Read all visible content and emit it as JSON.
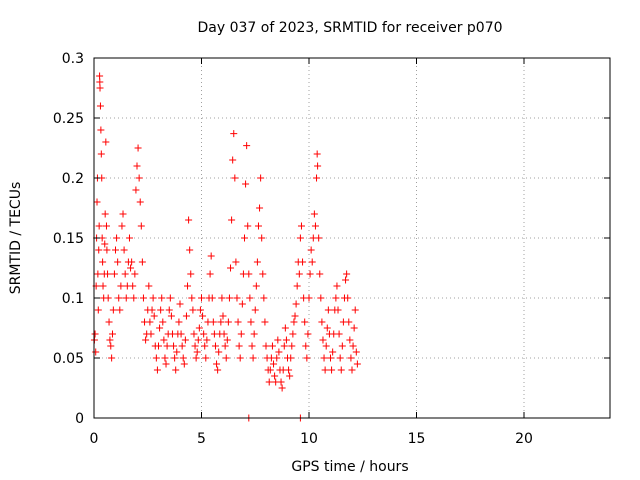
{
  "chart_data": {
    "type": "scatter",
    "title": "Day 037 of 2023, SRMTID for receiver p070",
    "xlabel": "GPS time / hours",
    "ylabel": "SRMTID / TECUs",
    "xlim": [
      0,
      24
    ],
    "ylim": [
      0,
      0.3
    ],
    "grid": true,
    "marker": "+",
    "colors": {
      "series": "#ff0000",
      "grid": "#a0a0a0",
      "axis": "#000000"
    },
    "x_ticks": [
      {
        "value": 0,
        "label": "0"
      },
      {
        "value": 5,
        "label": "5"
      },
      {
        "value": 10,
        "label": "10"
      },
      {
        "value": 15,
        "label": "15"
      },
      {
        "value": 20,
        "label": "20"
      }
    ],
    "y_ticks": [
      {
        "value": 0,
        "label": "0"
      },
      {
        "value": 0.05,
        "label": "0.05"
      },
      {
        "value": 0.1,
        "label": "0.1"
      },
      {
        "value": 0.15,
        "label": "0.15"
      },
      {
        "value": 0.2,
        "label": "0.2"
      },
      {
        "value": 0.25,
        "label": "0.25"
      },
      {
        "value": 0.3,
        "label": "0.3"
      }
    ],
    "series": [
      {
        "name": "p070",
        "points": [
          [
            0.02,
            0.065
          ],
          [
            0.05,
            0.07
          ],
          [
            0.08,
            0.055
          ],
          [
            0.1,
            0.11
          ],
          [
            0.12,
            0.15
          ],
          [
            0.14,
            0.18
          ],
          [
            0.16,
            0.2
          ],
          [
            0.18,
            0.12
          ],
          [
            0.2,
            0.09
          ],
          [
            0.22,
            0.14
          ],
          [
            0.24,
            0.16
          ],
          [
            0.26,
            0.285
          ],
          [
            0.27,
            0.28
          ],
          [
            0.28,
            0.275
          ],
          [
            0.3,
            0.26
          ],
          [
            0.32,
            0.24
          ],
          [
            0.34,
            0.22
          ],
          [
            0.36,
            0.2
          ],
          [
            0.38,
            0.15
          ],
          [
            0.4,
            0.13
          ],
          [
            0.42,
            0.11
          ],
          [
            0.45,
            0.1
          ],
          [
            0.48,
            0.12
          ],
          [
            0.5,
            0.145
          ],
          [
            0.52,
            0.17
          ],
          [
            0.55,
            0.23
          ],
          [
            0.58,
            0.16
          ],
          [
            0.6,
            0.14
          ],
          [
            0.63,
            0.12
          ],
          [
            0.66,
            0.1
          ],
          [
            0.7,
            0.08
          ],
          [
            0.74,
            0.065
          ],
          [
            0.78,
            0.06
          ],
          [
            0.82,
            0.05
          ],
          [
            0.86,
            0.07
          ],
          [
            0.9,
            0.09
          ],
          [
            0.95,
            0.12
          ],
          [
            1.0,
            0.14
          ],
          [
            1.05,
            0.15
          ],
          [
            1.1,
            0.13
          ],
          [
            1.15,
            0.1
          ],
          [
            1.2,
            0.09
          ],
          [
            1.25,
            0.11
          ],
          [
            1.3,
            0.16
          ],
          [
            1.35,
            0.17
          ],
          [
            1.4,
            0.14
          ],
          [
            1.45,
            0.12
          ],
          [
            1.5,
            0.1
          ],
          [
            1.55,
            0.11
          ],
          [
            1.6,
            0.13
          ],
          [
            1.65,
            0.15
          ],
          [
            1.7,
            0.125
          ],
          [
            1.75,
            0.13
          ],
          [
            1.8,
            0.11
          ],
          [
            1.85,
            0.1
          ],
          [
            1.9,
            0.12
          ],
          [
            1.95,
            0.19
          ],
          [
            2.0,
            0.21
          ],
          [
            2.05,
            0.225
          ],
          [
            2.1,
            0.2
          ],
          [
            2.15,
            0.18
          ],
          [
            2.2,
            0.16
          ],
          [
            2.25,
            0.13
          ],
          [
            2.3,
            0.1
          ],
          [
            2.35,
            0.08
          ],
          [
            2.4,
            0.065
          ],
          [
            2.45,
            0.07
          ],
          [
            2.5,
            0.09
          ],
          [
            2.55,
            0.11
          ],
          [
            2.6,
            0.08
          ],
          [
            2.65,
            0.07
          ],
          [
            2.7,
            0.09
          ],
          [
            2.75,
            0.1
          ],
          [
            2.8,
            0.085
          ],
          [
            2.85,
            0.06
          ],
          [
            2.9,
            0.05
          ],
          [
            2.95,
            0.04
          ],
          [
            3.0,
            0.06
          ],
          [
            3.05,
            0.075
          ],
          [
            3.1,
            0.09
          ],
          [
            3.15,
            0.1
          ],
          [
            3.2,
            0.08
          ],
          [
            3.25,
            0.065
          ],
          [
            3.3,
            0.05
          ],
          [
            3.35,
            0.045
          ],
          [
            3.4,
            0.06
          ],
          [
            3.45,
            0.07
          ],
          [
            3.5,
            0.09
          ],
          [
            3.55,
            0.1
          ],
          [
            3.6,
            0.085
          ],
          [
            3.65,
            0.07
          ],
          [
            3.7,
            0.06
          ],
          [
            3.75,
            0.05
          ],
          [
            3.8,
            0.04
          ],
          [
            3.85,
            0.055
          ],
          [
            3.9,
            0.07
          ],
          [
            3.95,
            0.08
          ],
          [
            4.0,
            0.095
          ],
          [
            4.05,
            0.07
          ],
          [
            4.1,
            0.06
          ],
          [
            4.15,
            0.05
          ],
          [
            4.2,
            0.045
          ],
          [
            4.25,
            0.065
          ],
          [
            4.3,
            0.085
          ],
          [
            4.35,
            0.11
          ],
          [
            4.4,
            0.165
          ],
          [
            4.45,
            0.14
          ],
          [
            4.5,
            0.12
          ],
          [
            4.55,
            0.1
          ],
          [
            4.6,
            0.09
          ],
          [
            4.65,
            0.07
          ],
          [
            4.7,
            0.06
          ],
          [
            4.75,
            0.05
          ],
          [
            4.8,
            0.055
          ],
          [
            4.85,
            0.065
          ],
          [
            4.9,
            0.075
          ],
          [
            4.95,
            0.09
          ],
          [
            5.0,
            0.1
          ],
          [
            5.05,
            0.085
          ],
          [
            5.1,
            0.07
          ],
          [
            5.15,
            0.06
          ],
          [
            5.2,
            0.05
          ],
          [
            5.25,
            0.065
          ],
          [
            5.3,
            0.08
          ],
          [
            5.35,
            0.1
          ],
          [
            5.4,
            0.12
          ],
          [
            5.45,
            0.135
          ],
          [
            5.5,
            0.1
          ],
          [
            5.55,
            0.08
          ],
          [
            5.6,
            0.07
          ],
          [
            5.65,
            0.06
          ],
          [
            5.7,
            0.045
          ],
          [
            5.75,
            0.04
          ],
          [
            5.8,
            0.055
          ],
          [
            5.85,
            0.07
          ],
          [
            5.9,
            0.08
          ],
          [
            5.95,
            0.1
          ],
          [
            6.0,
            0.085
          ],
          [
            6.05,
            0.07
          ],
          [
            6.1,
            0.06
          ],
          [
            6.15,
            0.05
          ],
          [
            6.2,
            0.065
          ],
          [
            6.25,
            0.08
          ],
          [
            6.3,
            0.1
          ],
          [
            6.35,
            0.125
          ],
          [
            6.4,
            0.165
          ],
          [
            6.45,
            0.215
          ],
          [
            6.5,
            0.237
          ],
          [
            6.55,
            0.2
          ],
          [
            6.6,
            0.13
          ],
          [
            6.65,
            0.1
          ],
          [
            6.7,
            0.08
          ],
          [
            6.75,
            0.06
          ],
          [
            6.8,
            0.05
          ],
          [
            6.85,
            0.07
          ],
          [
            6.9,
            0.095
          ],
          [
            6.95,
            0.12
          ],
          [
            7.0,
            0.15
          ],
          [
            7.05,
            0.195
          ],
          [
            7.1,
            0.227
          ],
          [
            7.15,
            0.16
          ],
          [
            7.2,
            0.12
          ],
          [
            7.25,
            0.1
          ],
          [
            7.3,
            0.08
          ],
          [
            7.35,
            0.06
          ],
          [
            7.4,
            0.05
          ],
          [
            7.45,
            0.07
          ],
          [
            7.5,
            0.09
          ],
          [
            7.55,
            0.11
          ],
          [
            7.6,
            0.13
          ],
          [
            7.65,
            0.16
          ],
          [
            7.7,
            0.175
          ],
          [
            7.75,
            0.2
          ],
          [
            7.8,
            0.15
          ],
          [
            7.85,
            0.12
          ],
          [
            7.9,
            0.1
          ],
          [
            7.95,
            0.08
          ],
          [
            8.0,
            0.06
          ],
          [
            8.05,
            0.05
          ],
          [
            8.1,
            0.04
          ],
          [
            8.15,
            0.03
          ],
          [
            8.2,
            0.04
          ],
          [
            8.25,
            0.05
          ],
          [
            8.3,
            0.06
          ],
          [
            8.35,
            0.045
          ],
          [
            8.4,
            0.035
          ],
          [
            8.45,
            0.03
          ],
          [
            8.5,
            0.05
          ],
          [
            8.55,
            0.065
          ],
          [
            8.6,
            0.055
          ],
          [
            8.65,
            0.04
          ],
          [
            8.7,
            0.03
          ],
          [
            8.75,
            0.025
          ],
          [
            8.8,
            0.04
          ],
          [
            8.85,
            0.06
          ],
          [
            8.9,
            0.075
          ],
          [
            8.95,
            0.065
          ],
          [
            9.0,
            0.05
          ],
          [
            9.05,
            0.04
          ],
          [
            9.1,
            0.035
          ],
          [
            9.15,
            0.05
          ],
          [
            9.2,
            0.06
          ],
          [
            9.25,
            0.07
          ],
          [
            9.3,
            0.08
          ],
          [
            9.35,
            0.085
          ],
          [
            9.4,
            0.095
          ],
          [
            9.45,
            0.11
          ],
          [
            9.5,
            0.13
          ],
          [
            9.55,
            0.12
          ],
          [
            9.6,
            0.15
          ],
          [
            9.65,
            0.16
          ],
          [
            9.7,
            0.13
          ],
          [
            9.75,
            0.1
          ],
          [
            9.8,
            0.08
          ],
          [
            9.85,
            0.06
          ],
          [
            9.9,
            0.05
          ],
          [
            9.95,
            0.07
          ],
          [
            10.0,
            0.1
          ],
          [
            10.05,
            0.12
          ],
          [
            10.1,
            0.14
          ],
          [
            10.15,
            0.13
          ],
          [
            10.2,
            0.15
          ],
          [
            10.25,
            0.17
          ],
          [
            10.3,
            0.16
          ],
          [
            10.35,
            0.2
          ],
          [
            10.38,
            0.22
          ],
          [
            10.4,
            0.21
          ],
          [
            10.45,
            0.15
          ],
          [
            10.5,
            0.12
          ],
          [
            10.55,
            0.1
          ],
          [
            10.6,
            0.08
          ],
          [
            10.65,
            0.065
          ],
          [
            10.7,
            0.05
          ],
          [
            10.75,
            0.04
          ],
          [
            10.8,
            0.06
          ],
          [
            10.85,
            0.075
          ],
          [
            10.9,
            0.09
          ],
          [
            10.95,
            0.07
          ],
          [
            11.0,
            0.05
          ],
          [
            11.05,
            0.04
          ],
          [
            11.1,
            0.055
          ],
          [
            11.15,
            0.07
          ],
          [
            11.2,
            0.09
          ],
          [
            11.25,
            0.1
          ],
          [
            11.3,
            0.11
          ],
          [
            11.35,
            0.09
          ],
          [
            11.4,
            0.07
          ],
          [
            11.45,
            0.05
          ],
          [
            11.5,
            0.04
          ],
          [
            11.55,
            0.06
          ],
          [
            11.6,
            0.08
          ],
          [
            11.65,
            0.1
          ],
          [
            11.7,
            0.115
          ],
          [
            11.75,
            0.12
          ],
          [
            11.8,
            0.1
          ],
          [
            11.85,
            0.08
          ],
          [
            11.9,
            0.065
          ],
          [
            11.95,
            0.05
          ],
          [
            12.0,
            0.04
          ],
          [
            12.05,
            0.06
          ],
          [
            12.1,
            0.075
          ],
          [
            12.15,
            0.09
          ],
          [
            12.2,
            0.055
          ],
          [
            12.25,
            0.045
          ],
          [
            7.2,
            0.0
          ],
          [
            9.6,
            0.0
          ]
        ]
      }
    ]
  }
}
